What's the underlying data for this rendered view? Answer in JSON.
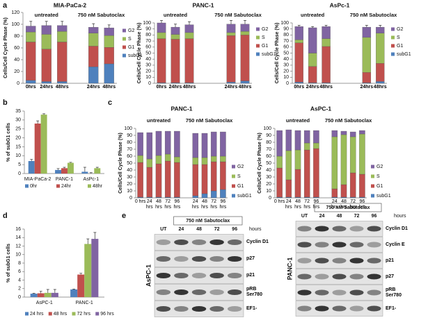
{
  "chart_data": [
    {
      "type": "stacked_bar",
      "panel": "a",
      "title": "MIA-PaCa-2",
      "ylabel": "Cells/Cell Cycle Phase (%)",
      "group_labels": [
        "untreated",
        "750 nM Sabutoclax"
      ],
      "categories": [
        "0hrs",
        "24hrs",
        "48hrs",
        null,
        "24hrs",
        "48hrs"
      ],
      "series": [
        {
          "name": "subG1",
          "color": "#4f81bd",
          "values": [
            5,
            3,
            3,
            null,
            28,
            33
          ]
        },
        {
          "name": "G1",
          "color": "#c0504d",
          "values": [
            65,
            55,
            67,
            null,
            35,
            28
          ],
          "errors": [
            3,
            4,
            3,
            null,
            6,
            5
          ]
        },
        {
          "name": "S",
          "color": "#9bbb59",
          "values": [
            17,
            25,
            18,
            null,
            22,
            20
          ]
        },
        {
          "name": "G2",
          "color": "#8064a2",
          "values": [
            10,
            15,
            10,
            null,
            10,
            13
          ],
          "errors": [
            8,
            7,
            7,
            null,
            6,
            5
          ]
        }
      ],
      "ylim": [
        0,
        120
      ],
      "yticks": [
        0,
        20,
        40,
        60,
        80,
        100,
        120
      ],
      "legend": "right"
    },
    {
      "type": "stacked_bar",
      "title": "PANC-1",
      "ylabel": "Cells/Cell Cycle Phase (%)",
      "group_labels": [
        "untreated",
        "750 nM Sabutoclax"
      ],
      "categories": [
        "0hrs",
        "24hrs",
        "48hrs",
        null,
        null,
        "24hrs",
        "48hrs"
      ],
      "series": [
        {
          "name": "subG1",
          "color": "#4f81bd",
          "values": [
            1,
            1,
            1,
            null,
            null,
            2,
            4
          ]
        },
        {
          "name": "G1",
          "color": "#c0504d",
          "values": [
            73,
            72,
            73,
            null,
            null,
            77,
            76
          ],
          "errors": [
            2,
            5,
            4,
            null,
            null,
            3,
            3
          ]
        },
        {
          "name": "S",
          "color": "#9bbb59",
          "values": [
            10,
            8,
            10,
            null,
            null,
            5,
            6
          ]
        },
        {
          "name": "G2",
          "color": "#8064a2",
          "values": [
            16,
            12,
            13,
            null,
            null,
            14,
            12
          ],
          "errors": [
            4,
            5,
            5,
            null,
            null,
            6,
            6
          ]
        }
      ],
      "ylim": [
        0,
        100
      ],
      "yticks": [
        0,
        10,
        20,
        30,
        40,
        50,
        60,
        70,
        80,
        90,
        100
      ],
      "legend": "right"
    },
    {
      "type": "stacked_bar",
      "title": "AsPc-1",
      "ylabel": "Cells/Cell Cycle Phase (%)",
      "group_labels": [
        "untreated",
        "750 nM Sabutoclax"
      ],
      "categories": [
        "0hrs",
        "24hrs",
        "48hrs",
        null,
        null,
        "24hrs",
        "48hrs"
      ],
      "series": [
        {
          "name": "subG1",
          "color": "#4f81bd",
          "values": [
            2,
            1,
            1,
            null,
            null,
            1,
            3
          ]
        },
        {
          "name": "G1",
          "color": "#c0504d",
          "values": [
            65,
            27,
            60,
            null,
            null,
            17,
            30
          ],
          "errors": [
            3,
            4,
            3,
            null,
            null,
            6,
            8
          ]
        },
        {
          "name": "S",
          "color": "#9bbb59",
          "values": [
            5,
            22,
            13,
            null,
            null,
            58,
            50
          ]
        },
        {
          "name": "G2",
          "color": "#8064a2",
          "values": [
            22,
            42,
            20,
            null,
            null,
            17,
            10
          ],
          "errors": [
            2,
            2,
            2,
            null,
            null,
            3,
            3
          ]
        }
      ],
      "ylim": [
        0,
        100
      ],
      "yticks": [
        0,
        10,
        20,
        30,
        40,
        50,
        60,
        70,
        80,
        90,
        100
      ],
      "legend": "right"
    },
    {
      "type": "grouped_bar",
      "panel": "b",
      "ylabel": "% of subG1 cells",
      "categories": [
        "MIA-PaCa-2",
        "PANC-1",
        "AsPc-1"
      ],
      "series": [
        {
          "name": "0hr",
          "color": "#4f81bd",
          "values": [
            7,
            2,
            1
          ],
          "errors": [
            1,
            0.8,
            2.5
          ]
        },
        {
          "name": "24hr",
          "color": "#c0504d",
          "values": [
            28,
            3,
            0
          ],
          "errors": [
            1.5,
            0.5,
            0.5
          ]
        },
        {
          "name": "48hr",
          "color": "#9bbb59",
          "values": [
            33,
            6,
            3
          ],
          "errors": [
            0.5,
            0.3,
            0.5
          ]
        }
      ],
      "ylim": [
        0,
        35
      ],
      "yticks": [
        0,
        5,
        10,
        15,
        20,
        25,
        30,
        35
      ],
      "legend": "bottom"
    },
    {
      "type": "stacked_bar",
      "panel": "c",
      "title": "PANC-1",
      "ylabel": "Cells/Cell Cycle Phase (%)",
      "group_labels": [
        "untreated",
        "750 nM Sabutoclax"
      ],
      "categories": [
        "0 hrs",
        "24 hrs",
        "48 hrs",
        "72 hrs",
        "96 hrs",
        null,
        "24 hrs",
        "48 hrs",
        "72 hrs",
        "96 hrs"
      ],
      "series": [
        {
          "name": "subG1",
          "color": "#4f81bd",
          "values": [
            1,
            1,
            1,
            1,
            1,
            null,
            3,
            6,
            10,
            12
          ]
        },
        {
          "name": "G1",
          "color": "#c0504d",
          "values": [
            50,
            43,
            48,
            52,
            50,
            null,
            45,
            42,
            42,
            40
          ]
        },
        {
          "name": "S",
          "color": "#9bbb59",
          "values": [
            10,
            12,
            12,
            10,
            8,
            null,
            10,
            10,
            8,
            8
          ]
        },
        {
          "name": "G2",
          "color": "#8064a2",
          "values": [
            33,
            38,
            35,
            33,
            37,
            null,
            35,
            35,
            35,
            35
          ]
        }
      ],
      "ylim": [
        0,
        100
      ],
      "yticks": [
        0,
        10,
        20,
        30,
        40,
        50,
        60,
        70,
        80,
        90,
        100
      ],
      "legend": "right"
    },
    {
      "type": "stacked_bar",
      "title": "AsPC-1",
      "ylabel": "Cells/Cell Cycle Phase (%)",
      "group_labels": [
        "untreated",
        "750 nM Sabutoclax"
      ],
      "categories": [
        "0 hrs",
        "24 hrs",
        "48 hrs",
        "72 hrs",
        "96 hrs",
        null,
        "24 hrs",
        "48 hrs",
        "72 hrs",
        "96 hrs"
      ],
      "series": [
        {
          "name": "subG1",
          "color": "#4f81bd",
          "values": [
            1,
            1,
            1,
            1,
            1,
            null,
            1,
            1,
            1,
            1
          ]
        },
        {
          "name": "G1",
          "color": "#c0504d",
          "values": [
            42,
            25,
            40,
            68,
            70,
            null,
            12,
            18,
            35,
            33
          ]
        },
        {
          "name": "S",
          "color": "#9bbb59",
          "values": [
            17,
            42,
            28,
            10,
            8,
            null,
            75,
            72,
            52,
            58
          ]
        },
        {
          "name": "G2",
          "color": "#8064a2",
          "values": [
            37,
            30,
            28,
            18,
            18,
            null,
            9,
            5,
            7,
            5
          ]
        }
      ],
      "ylim": [
        0,
        100
      ],
      "yticks": [
        0,
        10,
        20,
        30,
        40,
        50,
        60,
        70,
        80,
        90,
        100
      ],
      "legend": "right"
    },
    {
      "type": "grouped_bar",
      "panel": "d",
      "ylabel": "% of subG1 cells",
      "categories": [
        "AsPC-1",
        "PANC-1"
      ],
      "series": [
        {
          "name": "24 hrs",
          "color": "#4f81bd",
          "values": [
            0.8,
            1.8
          ],
          "errors": [
            0.1,
            0.1
          ]
        },
        {
          "name": "48 hrs",
          "color": "#c0504d",
          "values": [
            0.9,
            5.3
          ],
          "errors": [
            0.5,
            0.3
          ]
        },
        {
          "name": "72 hrs",
          "color": "#9bbb59",
          "values": [
            1.0,
            12.5
          ],
          "errors": [
            0.8,
            1.2
          ]
        },
        {
          "name": "96 hrs",
          "color": "#8064a2",
          "values": [
            1.0,
            13.7
          ],
          "errors": [
            0.8,
            1.5
          ]
        }
      ],
      "ylim": [
        0,
        16
      ],
      "yticks": [
        0,
        2,
        4,
        6,
        8,
        10,
        12,
        14,
        16
      ],
      "legend": "bottom"
    }
  ],
  "western_blots": {
    "panel": "e",
    "blots": [
      {
        "cell_line": "AsPC-1",
        "treatment": "750 nM Sabutoclax",
        "lanes": [
          "UT",
          "24",
          "48",
          "72",
          "96"
        ],
        "unit": "hours",
        "proteins": [
          "Cyclin D1",
          "p27",
          "p21",
          "pRB Ser780",
          "EF1-"
        ]
      },
      {
        "cell_line": "PANC-1",
        "treatment": "750 nM Sabutoclax",
        "lanes": [
          "UT",
          "24",
          "48",
          "72",
          "96"
        ],
        "unit": "hours",
        "proteins": [
          "Cyclin D1",
          "Cyclin E",
          "p21",
          "p27",
          "pRB Ser780",
          "EF1-"
        ]
      }
    ]
  }
}
